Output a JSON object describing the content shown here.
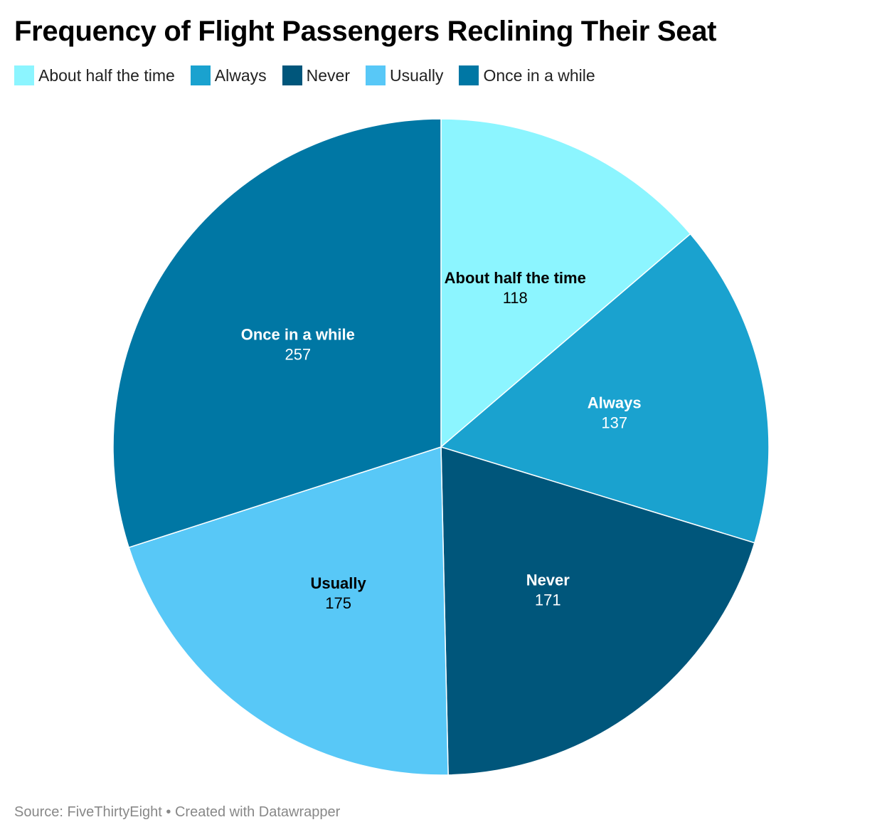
{
  "chart_data": {
    "type": "pie",
    "title": "Frequency of Flight Passengers Reclining Their Seat",
    "categories": [
      "About half the time",
      "Always",
      "Never",
      "Usually",
      "Once in a while"
    ],
    "values": [
      118,
      137,
      171,
      175,
      257
    ],
    "colors": [
      "#8cf5ff",
      "#1aa2cf",
      "#00567b",
      "#58c8f7",
      "#0077a4"
    ],
    "label_colors": [
      "#000000",
      "#ffffff",
      "#ffffff",
      "#000000",
      "#ffffff"
    ],
    "legend_position": "top-left",
    "source": "Source: FiveThirtyEight • Created with Datawrapper"
  }
}
